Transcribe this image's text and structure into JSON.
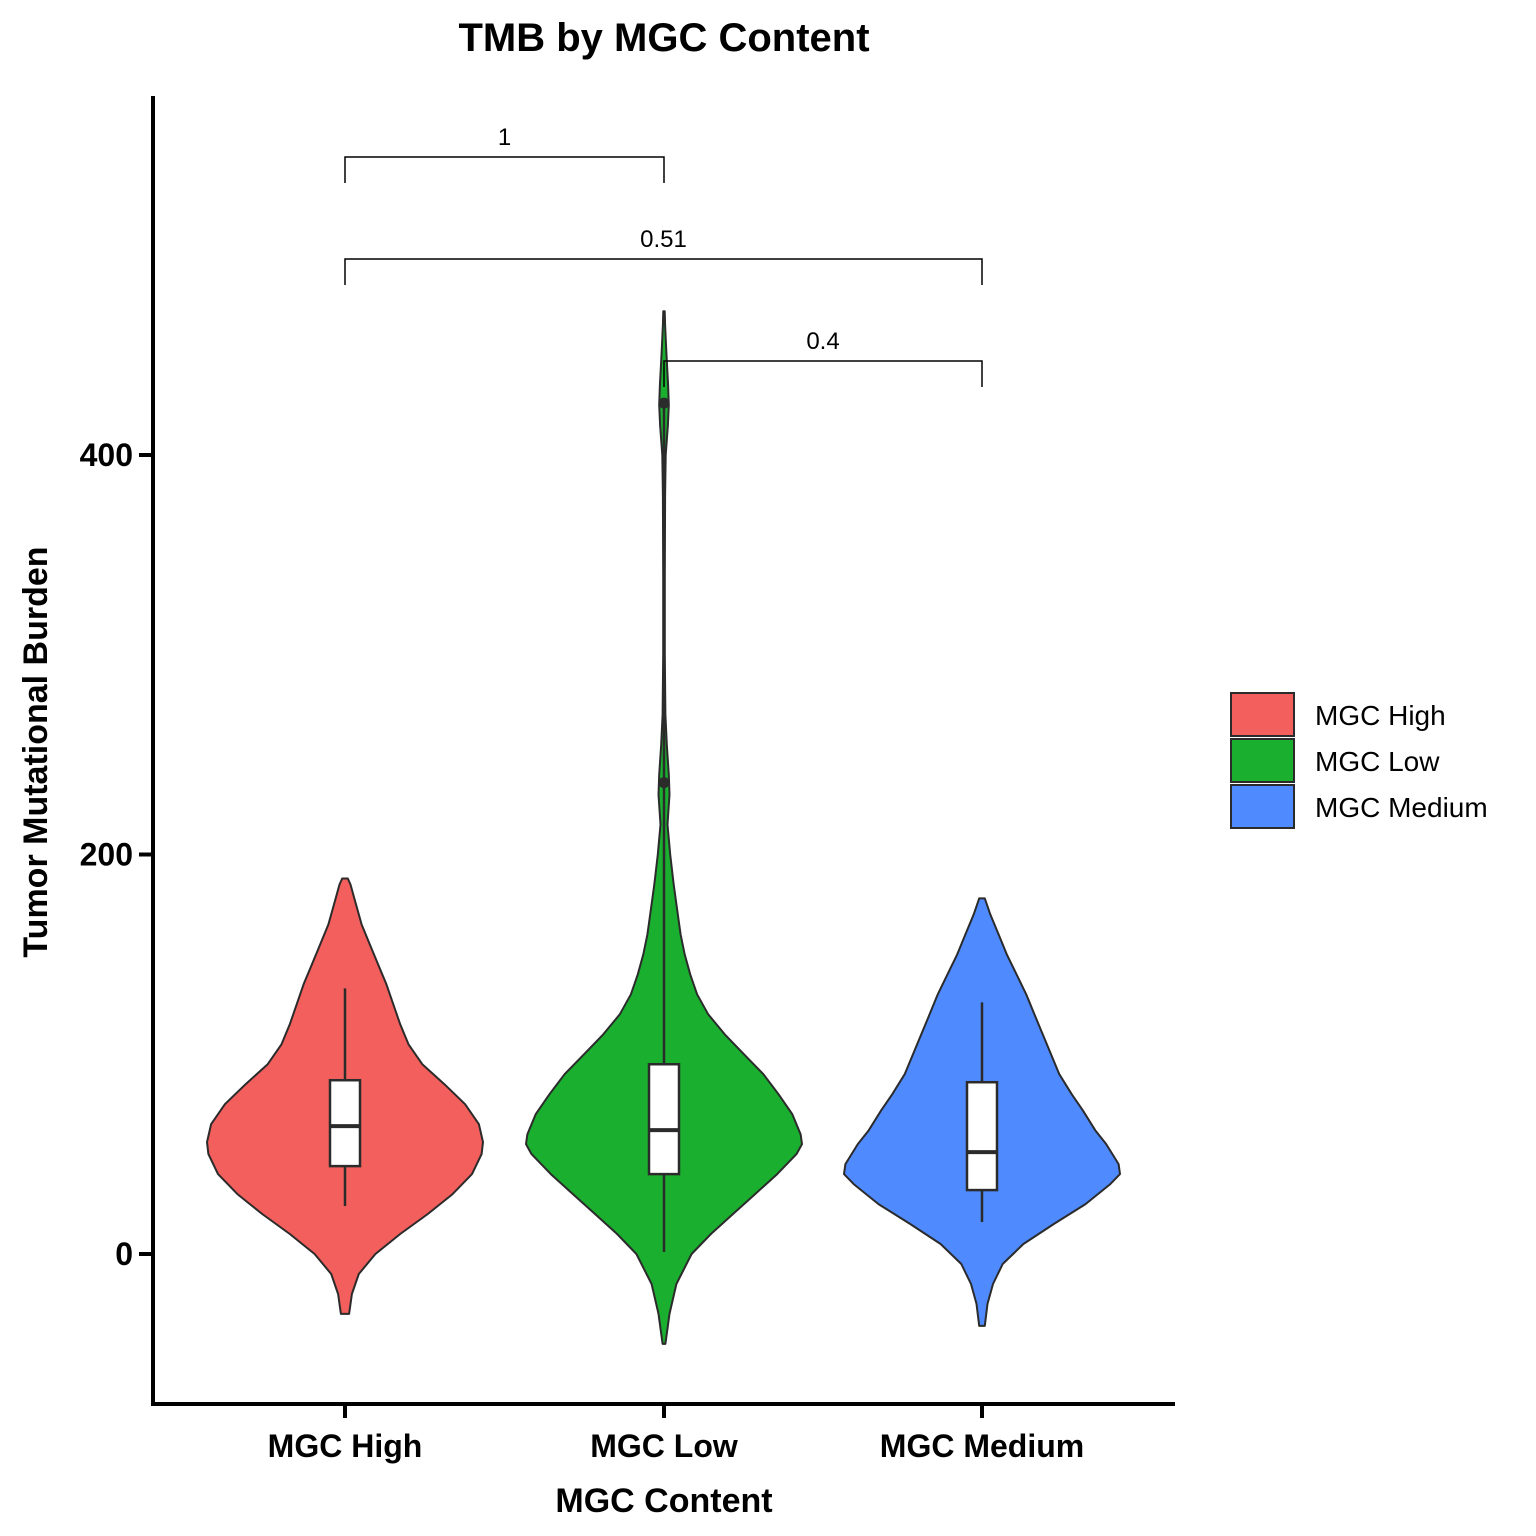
{
  "chart_data": {
    "type": "violin",
    "title": "TMB by MGC Content",
    "xlabel": "MGC Content",
    "ylabel": "Tumor Mutational Burden",
    "categories": [
      "MGC High",
      "MGC Low",
      "MGC Medium"
    ],
    "ylim": [
      -38,
      580
    ],
    "yticks": [
      0,
      200,
      400
    ],
    "grid": false,
    "legend_position": "right",
    "groups": [
      {
        "name": "MGC High",
        "color": "#F25F5C",
        "violin_range": [
          -30,
          188
        ],
        "box": {
          "q1": 44,
          "median": 64,
          "q3": 87,
          "whisker_low": 24,
          "whisker_high": 133
        },
        "outliers": [],
        "density": [
          [
            -30,
            0.03
          ],
          [
            -20,
            0.05
          ],
          [
            -10,
            0.1
          ],
          [
            0,
            0.22
          ],
          [
            10,
            0.4
          ],
          [
            20,
            0.6
          ],
          [
            30,
            0.78
          ],
          [
            40,
            0.92
          ],
          [
            50,
            0.99
          ],
          [
            56,
            1.0
          ],
          [
            65,
            0.97
          ],
          [
            75,
            0.87
          ],
          [
            85,
            0.72
          ],
          [
            95,
            0.56
          ],
          [
            105,
            0.46
          ],
          [
            115,
            0.4
          ],
          [
            125,
            0.35
          ],
          [
            135,
            0.3
          ],
          [
            145,
            0.24
          ],
          [
            155,
            0.18
          ],
          [
            165,
            0.12
          ],
          [
            175,
            0.08
          ],
          [
            185,
            0.04
          ],
          [
            188,
            0.02
          ]
        ]
      },
      {
        "name": "MGC Low",
        "color": "#1AAF2F",
        "violin_range": [
          -45,
          472
        ],
        "box": {
          "q1": 40,
          "median": 62,
          "q3": 95,
          "whisker_low": 1,
          "whisker_high": 176
        },
        "outliers": [
          426,
          236
        ],
        "density": [
          [
            -45,
            0.01
          ],
          [
            -30,
            0.04
          ],
          [
            -15,
            0.09
          ],
          [
            0,
            0.2
          ],
          [
            10,
            0.34
          ],
          [
            20,
            0.5
          ],
          [
            30,
            0.66
          ],
          [
            40,
            0.82
          ],
          [
            50,
            0.96
          ],
          [
            55,
            1.0
          ],
          [
            60,
            0.99
          ],
          [
            70,
            0.93
          ],
          [
            80,
            0.83
          ],
          [
            90,
            0.72
          ],
          [
            100,
            0.58
          ],
          [
            110,
            0.44
          ],
          [
            120,
            0.32
          ],
          [
            130,
            0.24
          ],
          [
            140,
            0.19
          ],
          [
            150,
            0.15
          ],
          [
            160,
            0.12
          ],
          [
            170,
            0.1
          ],
          [
            185,
            0.07
          ],
          [
            200,
            0.045
          ],
          [
            215,
            0.025
          ],
          [
            230,
            0.04
          ],
          [
            240,
            0.035
          ],
          [
            255,
            0.02
          ],
          [
            270,
            0.01
          ],
          [
            300,
            0.006
          ],
          [
            340,
            0.006
          ],
          [
            380,
            0.008
          ],
          [
            400,
            0.012
          ],
          [
            415,
            0.028
          ],
          [
            425,
            0.035
          ],
          [
            435,
            0.03
          ],
          [
            450,
            0.018
          ],
          [
            465,
            0.008
          ],
          [
            472,
            0.005
          ]
        ]
      },
      {
        "name": "MGC Medium",
        "color": "#4F8BFF",
        "violin_range": [
          -36,
          178
        ],
        "box": {
          "q1": 32,
          "median": 51,
          "q3": 86,
          "whisker_low": 16,
          "whisker_high": 126
        },
        "outliers": [],
        "density": [
          [
            -36,
            0.02
          ],
          [
            -25,
            0.04
          ],
          [
            -15,
            0.08
          ],
          [
            -5,
            0.15
          ],
          [
            5,
            0.3
          ],
          [
            15,
            0.52
          ],
          [
            25,
            0.75
          ],
          [
            35,
            0.93
          ],
          [
            40,
            1.0
          ],
          [
            45,
            0.99
          ],
          [
            55,
            0.9
          ],
          [
            62,
            0.82
          ],
          [
            72,
            0.73
          ],
          [
            80,
            0.65
          ],
          [
            90,
            0.56
          ],
          [
            100,
            0.5
          ],
          [
            110,
            0.44
          ],
          [
            120,
            0.38
          ],
          [
            130,
            0.32
          ],
          [
            140,
            0.25
          ],
          [
            150,
            0.18
          ],
          [
            160,
            0.12
          ],
          [
            170,
            0.06
          ],
          [
            178,
            0.02
          ]
        ]
      }
    ],
    "comparisons": [
      {
        "groups": [
          "MGC High",
          "MGC Low"
        ],
        "p_label": "1"
      },
      {
        "groups": [
          "MGC High",
          "MGC Medium"
        ],
        "p_label": "0.51"
      },
      {
        "groups": [
          "MGC Low",
          "MGC Medium"
        ],
        "p_label": "0.4"
      }
    ]
  }
}
